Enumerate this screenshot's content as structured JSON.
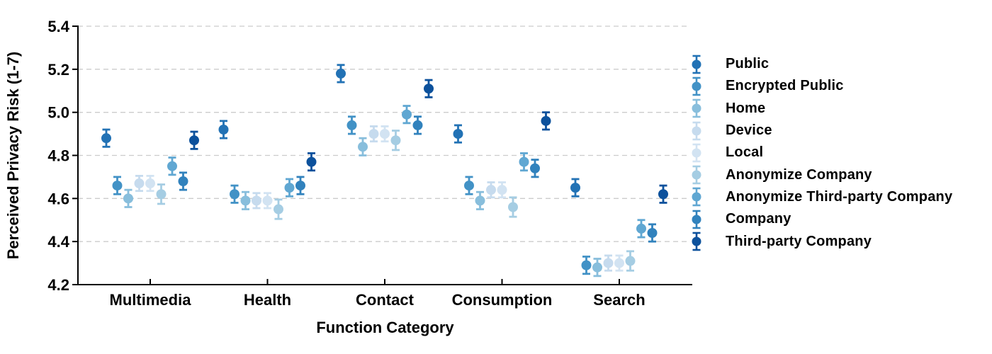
{
  "figure": {
    "kind": "errorbar-scatter-figure",
    "background": "#ffffff"
  },
  "chart_data": {
    "type": "scatter",
    "title": "",
    "xlabel": "Function Category",
    "ylabel": "Perceived Privacy Risk (1-7)",
    "ylim": [
      4.2,
      5.4
    ],
    "yticks": [
      4.2,
      4.4,
      4.6,
      4.8,
      5.0,
      5.2,
      5.4
    ],
    "grid": {
      "axis": "y",
      "style": "dashed",
      "color": "#cccccc",
      "top_line": 5.4
    },
    "legend_position": "right-outside",
    "legend_marker": "errorbar-circle",
    "error_bars": true,
    "categories": [
      "Multimedia",
      "Health",
      "Contact",
      "Consumption",
      "Search"
    ],
    "series": [
      {
        "name": "Public",
        "color": "#2272b5",
        "error": 0.04,
        "values": [
          4.88,
          4.92,
          5.18,
          4.9,
          4.65
        ]
      },
      {
        "name": "Encrypted Public",
        "color": "#4292c6",
        "error": 0.04,
        "values": [
          4.66,
          4.62,
          4.94,
          4.66,
          4.29
        ]
      },
      {
        "name": "Home",
        "color": "#88bedc",
        "error": 0.04,
        "values": [
          4.6,
          4.59,
          4.84,
          4.59,
          4.28
        ]
      },
      {
        "name": "Device",
        "color": "#c6dbee",
        "error": 0.035,
        "values": [
          4.67,
          4.59,
          4.9,
          4.64,
          4.3
        ]
      },
      {
        "name": "Local",
        "color": "#d2e3f2",
        "error": 0.035,
        "values": [
          4.67,
          4.59,
          4.9,
          4.64,
          4.3
        ]
      },
      {
        "name": "Anonymize Company",
        "color": "#a5cde3",
        "error": 0.045,
        "values": [
          4.62,
          4.55,
          4.87,
          4.56,
          4.31
        ]
      },
      {
        "name": "Anonymize Third-party Company",
        "color": "#60a7d2",
        "error": 0.04,
        "values": [
          4.75,
          4.65,
          4.99,
          4.77,
          4.46
        ]
      },
      {
        "name": "Company",
        "color": "#3182bd",
        "error": 0.04,
        "values": [
          4.68,
          4.66,
          4.94,
          4.74,
          4.44
        ]
      },
      {
        "name": "Third-party Company",
        "color": "#0c519c",
        "error": 0.04,
        "values": [
          4.87,
          4.77,
          5.11,
          4.96,
          4.62
        ]
      }
    ]
  }
}
